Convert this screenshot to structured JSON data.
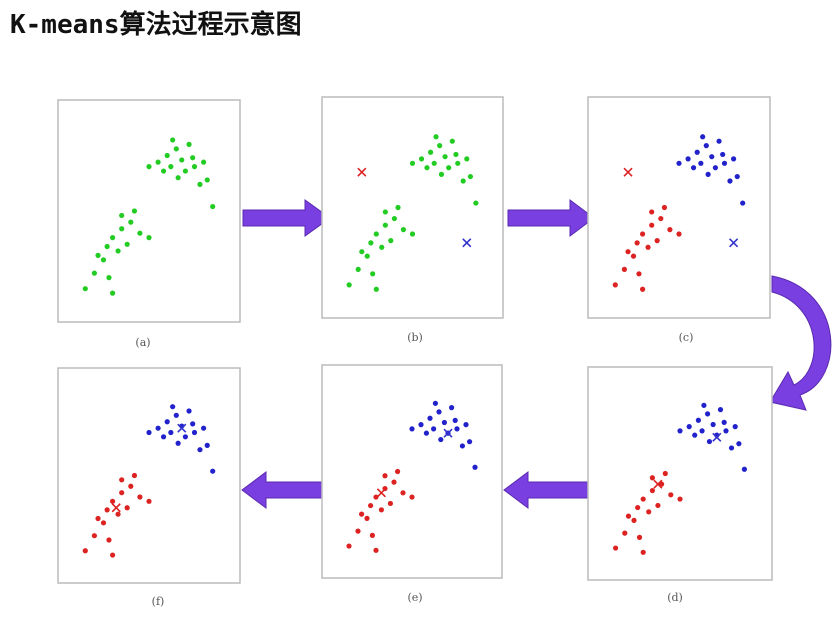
{
  "header": {
    "title": "K-means算法过程示意图"
  },
  "panels": [
    {
      "label": "(a)"
    },
    {
      "label": "(b)"
    },
    {
      "label": "(c)"
    },
    {
      "label": "(d)"
    },
    {
      "label": "(e)"
    },
    {
      "label": "(f)"
    }
  ]
}
